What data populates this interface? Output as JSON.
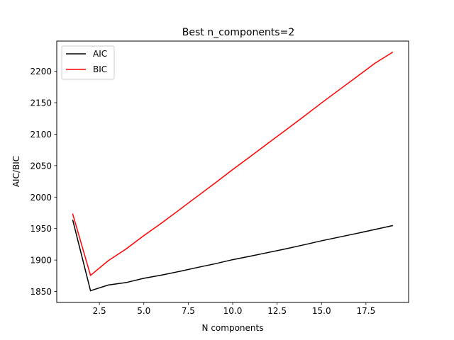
{
  "chart_data": {
    "type": "line",
    "title": "Best n_components=2",
    "xlabel": "N components",
    "ylabel": "AIC/BIC",
    "xlim": [
      0.1,
      19.9
    ],
    "ylim": [
      1832.6,
      2247.9
    ],
    "xticks": [
      2.5,
      5.0,
      7.5,
      10.0,
      12.5,
      15.0,
      17.5
    ],
    "xtick_labels": [
      "2.5",
      "5.0",
      "7.5",
      "10.0",
      "12.5",
      "15.0",
      "17.5"
    ],
    "yticks": [
      1850,
      1900,
      1950,
      2000,
      2050,
      2100,
      2150,
      2200
    ],
    "ytick_labels": [
      "1850",
      "1900",
      "1950",
      "2000",
      "2050",
      "2100",
      "2150",
      "2200"
    ],
    "grid": false,
    "legend_position": "top-left",
    "x": [
      1,
      2,
      3,
      4,
      5,
      6,
      7,
      8,
      9,
      10,
      11,
      12,
      13,
      14,
      15,
      16,
      17,
      18,
      19
    ],
    "series": [
      {
        "name": "AIC",
        "color": "#000000",
        "values": [
          1963.5,
          1851.2,
          1860.3,
          1864.2,
          1871.0,
          1876.1,
          1881.9,
          1888.1,
          1894.0,
          1900.6,
          1906.2,
          1912.0,
          1917.9,
          1924.1,
          1930.6,
          1936.5,
          1942.4,
          1948.5,
          1954.7
        ]
      },
      {
        "name": "BIC",
        "color": "#ff0000",
        "values": [
          1973.1,
          1875.6,
          1899.0,
          1917.6,
          1938.8,
          1958.8,
          1979.8,
          2001.1,
          2022.1,
          2043.8,
          2064.6,
          2085.8,
          2106.8,
          2128.0,
          2149.6,
          2170.6,
          2191.5,
          2212.6,
          2230.2
        ]
      }
    ]
  }
}
